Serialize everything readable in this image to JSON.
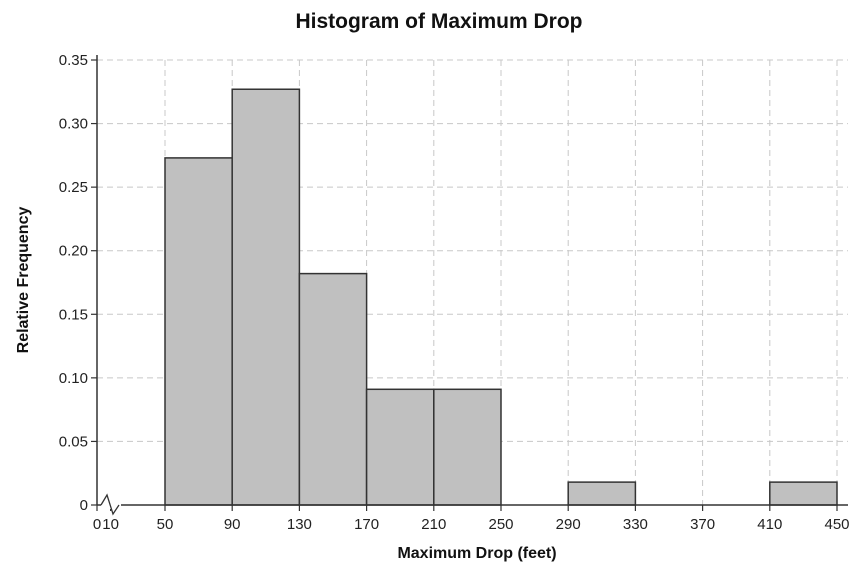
{
  "chart_data": {
    "type": "bar",
    "title": "Histogram of Maximum Drop",
    "xlabel": "Maximum Drop (feet)",
    "ylabel": "Relative Frequency",
    "xlim": [
      0,
      450
    ],
    "ylim": [
      0,
      0.35
    ],
    "grid": true,
    "x_ticks": [
      "0",
      "10",
      "50",
      "90",
      "130",
      "170",
      "210",
      "250",
      "290",
      "330",
      "370",
      "410",
      "450"
    ],
    "y_ticks": [
      "0",
      "0.05",
      "0.10",
      "0.15",
      "0.20",
      "0.25",
      "0.30",
      "0.35"
    ],
    "bins": [
      {
        "start": 50,
        "end": 90,
        "value": 0.273
      },
      {
        "start": 90,
        "end": 130,
        "value": 0.327
      },
      {
        "start": 130,
        "end": 170,
        "value": 0.182
      },
      {
        "start": 170,
        "end": 210,
        "value": 0.091
      },
      {
        "start": 210,
        "end": 250,
        "value": 0.091
      },
      {
        "start": 250,
        "end": 290,
        "value": 0
      },
      {
        "start": 290,
        "end": 330,
        "value": 0.018
      },
      {
        "start": 330,
        "end": 370,
        "value": 0
      },
      {
        "start": 370,
        "end": 410,
        "value": 0
      },
      {
        "start": 410,
        "end": 450,
        "value": 0.018
      }
    ],
    "colors": {
      "bar_fill": "#c0c0c0",
      "bar_stroke": "#333333",
      "grid": "#c8c8c8"
    },
    "axis_break": "zigzag between 0 and 50 on x-axis"
  }
}
